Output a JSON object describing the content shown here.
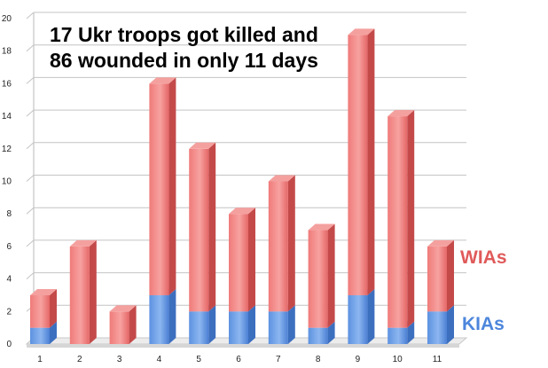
{
  "chart_data": {
    "type": "bar",
    "stacked": true,
    "three_d": true,
    "title_lines": [
      "17 Ukr troops got killed and",
      "86 wounded in only 11 days"
    ],
    "categories": [
      "1",
      "2",
      "3",
      "4",
      "5",
      "6",
      "7",
      "8",
      "9",
      "10",
      "11"
    ],
    "series": [
      {
        "name": "KIAs",
        "color": "#5b8fde",
        "values": [
          1,
          0,
          0,
          3,
          2,
          2,
          2,
          1,
          3,
          1,
          2
        ]
      },
      {
        "name": "WIAs",
        "color": "#ef7675",
        "values": [
          2,
          6,
          2,
          13,
          10,
          6,
          8,
          6,
          16,
          13,
          4
        ]
      }
    ],
    "ylim": [
      0,
      20
    ],
    "yticks": [
      0,
      2,
      4,
      6,
      8,
      10,
      12,
      14,
      16,
      18,
      20
    ],
    "grid": true,
    "legend_position": "right",
    "legend_colors": {
      "WIAs": "#e05a5a",
      "KIAs": "#4d86dc"
    }
  }
}
